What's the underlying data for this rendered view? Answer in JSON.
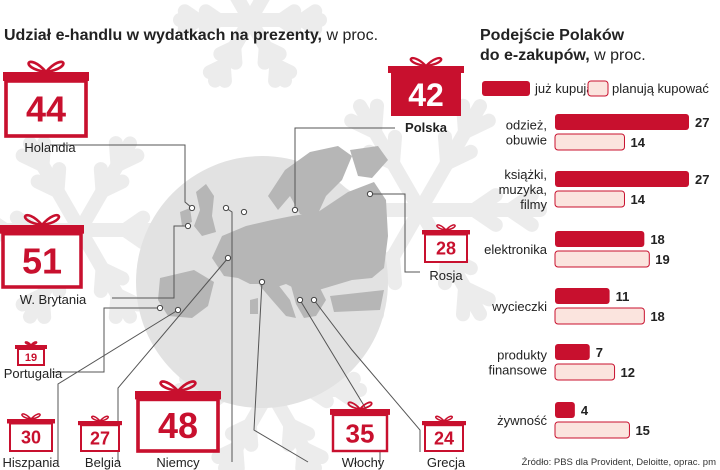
{
  "colors": {
    "accent": "#c8102e",
    "accent_dark": "#a80d27",
    "planned_fill": "#fbe4de",
    "map_land": "#b6b6b6",
    "map_circle": "#e2e2e2",
    "snowflake": "#ececec",
    "text": "#222222",
    "leader": "#555555"
  },
  "left": {
    "title_bold": "Udział e-handlu w  wydatkach na prezenty,",
    "title_light": " w proc."
  },
  "right": {
    "title_line1": "Podejście Polaków",
    "title_line2_bold": "do e-zakupów,",
    "title_line2_light": " w proc.",
    "legend": [
      "już kupują",
      "planują kupować"
    ]
  },
  "source": "Źródło: PBS dla Provident, Deloitte, oprac. pm",
  "chart_data": [
    {
      "type": "bar",
      "title": "Udział e-handlu w wydatkach na prezenty, w proc.",
      "categories": [
        "Holandia",
        "W. Brytania",
        "Portugalia",
        "Hiszpania",
        "Belgia",
        "Niemcy",
        "Polska",
        "Rosja",
        "Włochy",
        "Grecja"
      ],
      "values": [
        44,
        51,
        19,
        30,
        27,
        48,
        42,
        28,
        35,
        24
      ],
      "highlight": "Polska"
    },
    {
      "type": "bar",
      "orientation": "horizontal",
      "title": "Podejście Polaków do e-zakupów, w proc.",
      "categories": [
        [
          "odzież,",
          "obuwie"
        ],
        [
          "książki,",
          "muzyka,",
          "filmy"
        ],
        [
          "elektronika"
        ],
        [
          "wycieczki"
        ],
        [
          "produkty",
          "finansowe"
        ],
        [
          "żywność"
        ]
      ],
      "series": [
        {
          "name": "już kupują",
          "values": [
            27,
            27,
            18,
            11,
            7,
            4
          ]
        },
        {
          "name": "planują kupować",
          "values": [
            14,
            14,
            19,
            18,
            12,
            15
          ]
        }
      ],
      "xlim": [
        0,
        27
      ]
    }
  ]
}
